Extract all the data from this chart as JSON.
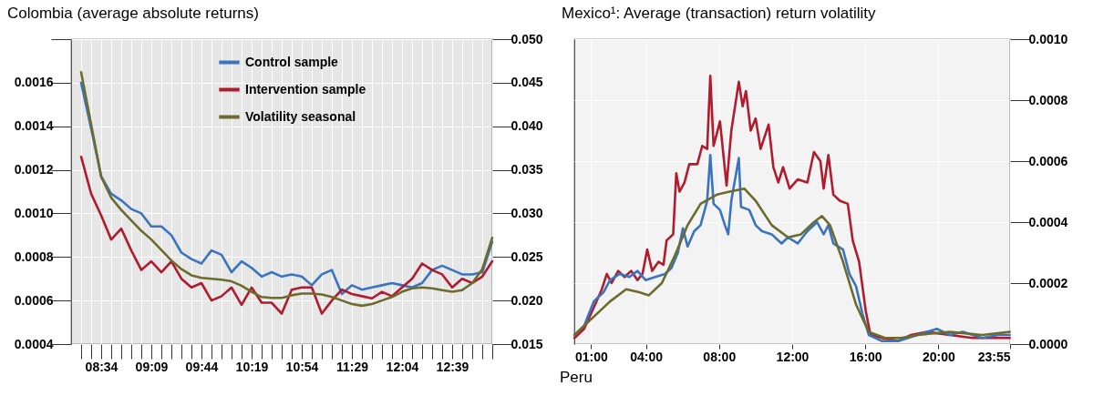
{
  "chart_data": [
    {
      "type": "line",
      "title": "Colombia (average absolute returns)",
      "categories": [
        null,
        null,
        "08:34",
        null,
        null,
        null,
        null,
        "09:09",
        null,
        null,
        null,
        null,
        "09:44",
        null,
        null,
        null,
        null,
        "10:19",
        null,
        null,
        null,
        null,
        "10:54",
        null,
        null,
        null,
        null,
        "11:29",
        null,
        null,
        null,
        null,
        "12:04",
        null,
        null,
        null,
        null,
        "12:39",
        null,
        null,
        null,
        null
      ],
      "series": [
        {
          "name": "Control sample",
          "color": "#3a73c0",
          "values": [
            0.0016,
            0.00139,
            0.00117,
            0.00109,
            0.00106,
            0.00102,
            0.001,
            0.00094,
            0.00094,
            0.0009,
            0.00082,
            0.00079,
            0.00077,
            0.00083,
            0.00081,
            0.00073,
            0.00078,
            0.00075,
            0.00071,
            0.00073,
            0.00071,
            0.00072,
            0.00071,
            0.00067,
            0.00072,
            0.00074,
            0.00063,
            0.00067,
            0.00065,
            0.00066,
            0.00067,
            0.00068,
            0.00067,
            0.00066,
            0.00068,
            0.00074,
            0.00076,
            0.00074,
            0.00072,
            0.00072,
            0.00073,
            0.00087
          ]
        },
        {
          "name": "Intervention sample",
          "color": "#b01c2e",
          "values": [
            0.00126,
            0.00109,
            0.00099,
            0.00088,
            0.00093,
            0.00083,
            0.00074,
            0.00078,
            0.00073,
            0.00078,
            0.0007,
            0.00066,
            0.00068,
            0.0006,
            0.00062,
            0.00066,
            0.00058,
            0.00066,
            0.00059,
            0.00059,
            0.00054,
            0.00065,
            0.00066,
            0.00066,
            0.00054,
            0.0006,
            0.00065,
            0.00063,
            0.00062,
            0.00061,
            0.00064,
            0.00062,
            0.00066,
            0.0007,
            0.00077,
            0.00074,
            0.00072,
            0.00066,
            0.0007,
            0.00068,
            0.00071,
            0.00078
          ]
        },
        {
          "name": "Volatility seasonal",
          "color": "#6b6b2e",
          "axis": "y2",
          "values": [
            0.0462,
            0.0402,
            0.0342,
            0.0318,
            0.0304,
            0.0292,
            0.028,
            0.027,
            0.0258,
            0.0246,
            0.0236,
            0.0229,
            0.0226,
            0.0225,
            0.0224,
            0.0222,
            0.0217,
            0.021,
            0.0204,
            0.0203,
            0.0203,
            0.0206,
            0.0208,
            0.0208,
            0.0207,
            0.0204,
            0.02,
            0.0196,
            0.0194,
            0.0196,
            0.02,
            0.0204,
            0.021,
            0.0214,
            0.0215,
            0.0214,
            0.0212,
            0.021,
            0.0212,
            0.022,
            0.0236,
            0.0272
          ]
        }
      ],
      "ylim": [
        0.0004,
        0.0018
      ],
      "yticks": [
        {
          "value": 0.0004,
          "label": "0.0004"
        },
        {
          "value": 0.0006,
          "label": "0.0006"
        },
        {
          "value": 0.0008,
          "label": "0.0008"
        },
        {
          "value": 0.001,
          "label": "0.0010"
        },
        {
          "value": 0.0012,
          "label": "0.0012"
        },
        {
          "value": 0.0014,
          "label": "0.0014"
        },
        {
          "value": 0.0016,
          "label": "0.0016"
        },
        {
          "value": 0.0018,
          "label": null
        }
      ],
      "y2lim": [
        0.015,
        0.05
      ],
      "y2ticks": [
        {
          "value": 0.015,
          "label": "0.015"
        },
        {
          "value": 0.02,
          "label": "0.020"
        },
        {
          "value": 0.025,
          "label": "0.025"
        },
        {
          "value": 0.03,
          "label": "0.030"
        },
        {
          "value": 0.035,
          "label": "0.035"
        },
        {
          "value": 0.04,
          "label": "0.040"
        },
        {
          "value": 0.045,
          "label": "0.045"
        },
        {
          "value": 0.05,
          "label": "0.050"
        }
      ],
      "grid": true,
      "legend": "top"
    },
    {
      "type": "line",
      "title": "Mexico¹: Average (transaction) return volatility",
      "annotations": [
        "Peru"
      ],
      "series": [
        {
          "color": "#b01c2e",
          "axis": "y2",
          "x": [
            0.09,
            0.62,
            1.15,
            1.59,
            1.86,
            2.12,
            2.48,
            2.83,
            3.19,
            3.54,
            3.81,
            4.07,
            4.34,
            4.69,
            4.96,
            5.13,
            5.49,
            5.66,
            5.84,
            6.11,
            6.37,
            6.81,
            7.08,
            7.35,
            7.52,
            7.7,
            8.05,
            8.41,
            8.67,
            9.08,
            9.29,
            9.47,
            9.73,
            10.0,
            10.27,
            10.71,
            10.97,
            11.24,
            11.5,
            11.86,
            12.3,
            12.83,
            13.19,
            13.54,
            13.72,
            13.98,
            14.25,
            14.6,
            15.04,
            15.31,
            15.66,
            16.02,
            16.28,
            16.9,
            17.79,
            18.5,
            19.38,
            20.62,
            21.86,
            23.1,
            23.9
          ],
          "values": [
            2e-05,
            5e-05,
            0.00012,
            0.00018,
            0.00023,
            0.0002,
            0.00024,
            0.00022,
            0.00024,
            0.00021,
            0.00023,
            0.00031,
            0.00024,
            0.00027,
            0.00026,
            0.00034,
            0.00036,
            0.00056,
            0.0005,
            0.00053,
            0.00059,
            0.00059,
            0.00065,
            0.00064,
            0.00088,
            0.00065,
            0.00073,
            0.00052,
            0.0007,
            0.00086,
            0.00078,
            0.00083,
            0.0007,
            0.00074,
            0.00064,
            0.00072,
            0.00058,
            0.00053,
            0.00058,
            0.00051,
            0.00054,
            0.00053,
            0.00063,
            0.0006,
            0.00051,
            0.00062,
            0.00049,
            0.00047,
            0.00046,
            0.00034,
            0.00027,
            0.00011,
            3e-05,
            2e-05,
            1e-05,
            3e-05,
            4e-05,
            3e-05,
            2e-05,
            2e-05,
            2e-05
          ]
        },
        {
          "color": "#3a73c0",
          "axis": "y2",
          "x": [
            0.09,
            0.62,
            1.15,
            1.68,
            2.04,
            2.57,
            3.1,
            3.54,
            3.98,
            4.51,
            5.04,
            5.4,
            5.75,
            6.02,
            6.28,
            6.64,
            6.99,
            7.35,
            7.52,
            7.7,
            8.05,
            8.32,
            8.5,
            8.67,
            9.08,
            9.2,
            9.65,
            10.0,
            10.35,
            10.88,
            11.42,
            11.77,
            12.3,
            12.83,
            13.36,
            13.72,
            13.98,
            14.25,
            14.78,
            15.13,
            15.49,
            15.84,
            16.19,
            16.9,
            17.79,
            18.85,
            19.91,
            20.62,
            21.33,
            22.39,
            23.27,
            23.9
          ],
          "values": [
            3e-05,
            6e-05,
            0.00014,
            0.00017,
            0.00021,
            0.00023,
            0.00022,
            0.00024,
            0.00021,
            0.00022,
            0.00023,
            0.00025,
            0.0003,
            0.00038,
            0.00032,
            0.00037,
            0.00039,
            0.00047,
            0.00062,
            0.00046,
            0.00044,
            0.00039,
            0.00036,
            0.00047,
            0.00061,
            0.00045,
            0.00044,
            0.00039,
            0.00037,
            0.00036,
            0.00033,
            0.00035,
            0.00033,
            0.00037,
            0.0004,
            0.00036,
            0.00039,
            0.00033,
            0.00031,
            0.00023,
            0.00019,
            0.0001,
            3e-05,
            1e-05,
            1e-05,
            3e-05,
            5e-05,
            3e-05,
            4e-05,
            2e-05,
            3e-05,
            3e-05
          ]
        },
        {
          "color": "#6b6b2e",
          "axis": "y2",
          "x": [
            0.09,
            1.15,
            2.04,
            2.92,
            3.63,
            4.16,
            4.87,
            5.58,
            6.28,
            6.99,
            7.88,
            8.58,
            9.38,
            10.0,
            10.88,
            11.77,
            12.48,
            13.19,
            13.63,
            14.07,
            14.78,
            15.49,
            16.19,
            17.08,
            17.96,
            18.85,
            20.62,
            22.39,
            23.9
          ],
          "values": [
            3e-05,
            9e-05,
            0.00014,
            0.00018,
            0.00017,
            0.00016,
            0.0002,
            0.00029,
            0.00039,
            0.00046,
            0.00049,
            0.0005,
            0.00051,
            0.00047,
            0.00039,
            0.00035,
            0.00036,
            0.0004,
            0.00042,
            0.00039,
            0.00027,
            0.00013,
            4e-05,
            2e-05,
            2e-05,
            3e-05,
            4e-05,
            3e-05,
            4e-05
          ]
        }
      ],
      "xlim": [
        0.0833,
        23.9167
      ],
      "xticks": [
        {
          "value": 1,
          "label": "01:00"
        },
        {
          "value": 4,
          "label": "04:00"
        },
        {
          "value": 8,
          "label": "08:00"
        },
        {
          "value": 12,
          "label": "12:00"
        },
        {
          "value": 16,
          "label": "16:00"
        },
        {
          "value": 20,
          "label": "20:00"
        },
        {
          "value": 23.9167,
          "label": "23:55"
        }
      ],
      "y2lim": [
        0,
        0.001
      ],
      "y2ticks": [
        {
          "value": 0,
          "label": "0.0000"
        },
        {
          "value": 0.0002,
          "label": "0.0002"
        },
        {
          "value": 0.0004,
          "label": "0.0004"
        },
        {
          "value": 0.0006,
          "label": "0.0006"
        },
        {
          "value": 0.0008,
          "label": "0.0008"
        },
        {
          "value": 0.001,
          "label": "0.0010"
        }
      ],
      "grid": true
    }
  ]
}
